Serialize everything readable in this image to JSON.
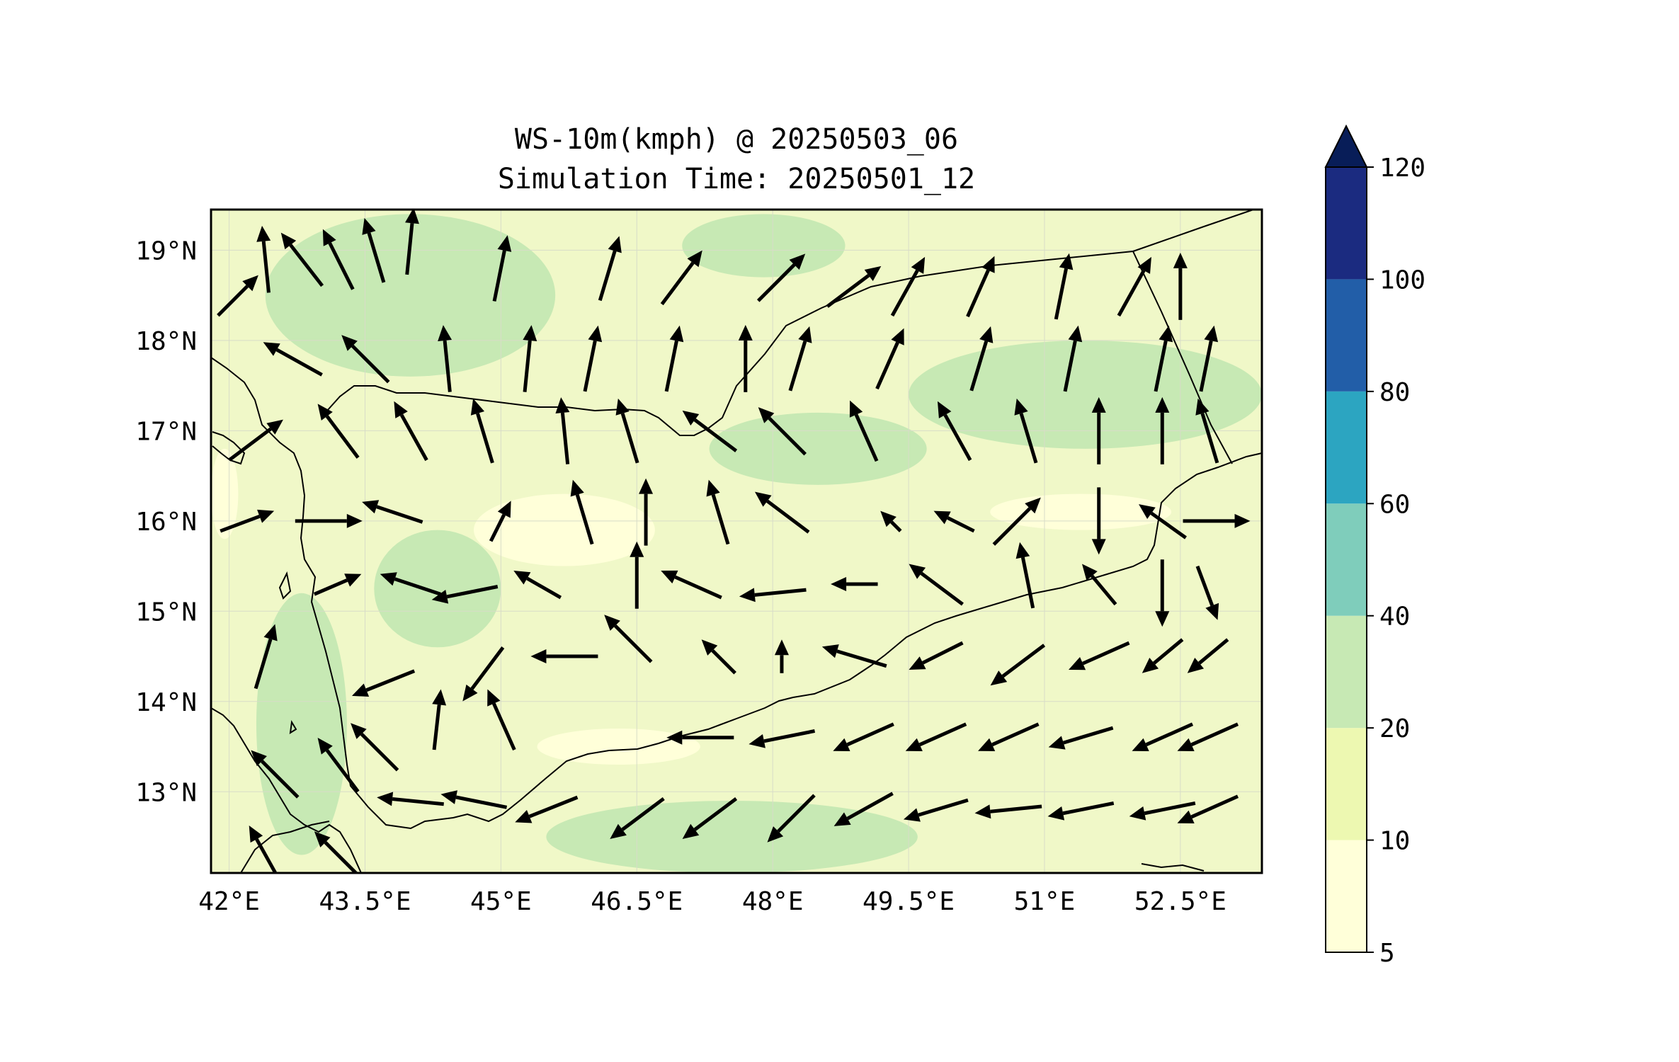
{
  "title": {
    "line1": "WS-10m(kmph) @ 20250503_06",
    "line2": "Simulation Time: 20250501_12"
  },
  "map": {
    "lon_range": [
      41.8,
      53.4
    ],
    "lat_range": [
      12.1,
      19.45
    ],
    "x_ticks": [
      {
        "value": 42.0,
        "label": "42°E"
      },
      {
        "value": 43.5,
        "label": "43.5°E"
      },
      {
        "value": 45.0,
        "label": "45°E"
      },
      {
        "value": 46.5,
        "label": "46.5°E"
      },
      {
        "value": 48.0,
        "label": "48°E"
      },
      {
        "value": 49.5,
        "label": "49.5°E"
      },
      {
        "value": 51.0,
        "label": "51°E"
      },
      {
        "value": 52.5,
        "label": "52.5°E"
      }
    ],
    "y_ticks": [
      {
        "value": 13,
        "label": "13°N"
      },
      {
        "value": 14,
        "label": "14°N"
      },
      {
        "value": 15,
        "label": "15°N"
      },
      {
        "value": 16,
        "label": "16°N"
      },
      {
        "value": 17,
        "label": "17°N"
      },
      {
        "value": 18,
        "label": "18°N"
      },
      {
        "value": 19,
        "label": "19°N"
      }
    ],
    "gridlines": true,
    "background_color": "#f0f8c8"
  },
  "colorbar": {
    "extend": "max",
    "orientation": "vertical",
    "levels": [
      5,
      10,
      20,
      40,
      60,
      80,
      100,
      120
    ],
    "colors": [
      "#ffffd9",
      "#edf8b1",
      "#c7e9b4",
      "#7fcdbb",
      "#2ca5c1",
      "#225ea8",
      "#1b2b80"
    ],
    "over_color": "#081d58",
    "tick_labels": [
      "5",
      "10",
      "20",
      "40",
      "60",
      "80",
      "100",
      "120"
    ]
  },
  "chart_data": {
    "type": "map",
    "variable": "WS-10m(kmph)",
    "valid_time": "20250503_06",
    "simulation_time": "20250501_12",
    "wind_speed_zones": [
      {
        "category": "20-40",
        "lon": [
          42.3,
          43.3
        ],
        "lat": [
          12.3,
          15.2
        ]
      },
      {
        "category": "20-40",
        "lon": [
          42.4,
          45.6
        ],
        "lat": [
          17.6,
          19.4
        ]
      },
      {
        "category": "20-40",
        "lon": [
          47.0,
          48.8
        ],
        "lat": [
          18.7,
          19.4
        ]
      },
      {
        "category": "20-40",
        "lon": [
          47.3,
          49.7
        ],
        "lat": [
          16.4,
          17.2
        ]
      },
      {
        "category": "20-40",
        "lon": [
          49.5,
          53.4
        ],
        "lat": [
          16.8,
          18.0
        ]
      },
      {
        "category": "20-40",
        "lon": [
          43.6,
          45.0
        ],
        "lat": [
          14.6,
          15.9
        ]
      },
      {
        "category": "20-40",
        "lon": [
          45.5,
          49.6
        ],
        "lat": [
          12.1,
          12.9
        ]
      },
      {
        "category": "5-10",
        "lon": [
          44.7,
          46.7
        ],
        "lat": [
          15.5,
          16.3
        ]
      },
      {
        "category": "5-10",
        "lon": [
          50.4,
          52.4
        ],
        "lat": [
          15.9,
          16.3
        ]
      },
      {
        "category": "5-10",
        "lon": [
          41.8,
          42.1
        ],
        "lat": [
          15.8,
          16.8
        ]
      },
      {
        "category": "5-10",
        "lon": [
          45.4,
          47.2
        ],
        "lat": [
          13.3,
          13.7
        ]
      }
    ],
    "wind_vectors": [
      {
        "lon": 42.1,
        "lat": 18.5,
        "u": 0.6,
        "v": 0.6
      },
      {
        "lon": 42.4,
        "lat": 18.9,
        "u": -0.1,
        "v": 1.0
      },
      {
        "lon": 42.8,
        "lat": 18.9,
        "u": -0.7,
        "v": 0.9
      },
      {
        "lon": 43.2,
        "lat": 18.9,
        "u": -0.5,
        "v": 1.0
      },
      {
        "lon": 43.6,
        "lat": 19.0,
        "u": -0.3,
        "v": 1.0
      },
      {
        "lon": 44.0,
        "lat": 19.1,
        "u": 0.1,
        "v": 1.0
      },
      {
        "lon": 45.0,
        "lat": 18.8,
        "u": 0.2,
        "v": 1.0
      },
      {
        "lon": 46.2,
        "lat": 18.8,
        "u": 0.3,
        "v": 1.0
      },
      {
        "lon": 47.0,
        "lat": 18.7,
        "u": 0.6,
        "v": 0.8
      },
      {
        "lon": 48.1,
        "lat": 18.7,
        "u": 0.7,
        "v": 0.7
      },
      {
        "lon": 48.9,
        "lat": 18.6,
        "u": 0.8,
        "v": 0.6
      },
      {
        "lon": 49.5,
        "lat": 18.6,
        "u": 0.5,
        "v": 0.9
      },
      {
        "lon": 50.3,
        "lat": 18.6,
        "u": 0.4,
        "v": 0.9
      },
      {
        "lon": 51.2,
        "lat": 18.6,
        "u": 0.2,
        "v": 1.0
      },
      {
        "lon": 52.0,
        "lat": 18.6,
        "u": 0.5,
        "v": 0.9
      },
      {
        "lon": 52.5,
        "lat": 18.6,
        "u": 0.0,
        "v": 1.0
      },
      {
        "lon": 42.7,
        "lat": 17.8,
        "u": -0.9,
        "v": 0.5
      },
      {
        "lon": 43.5,
        "lat": 17.8,
        "u": -0.7,
        "v": 0.7
      },
      {
        "lon": 44.4,
        "lat": 17.8,
        "u": -0.1,
        "v": 1.0
      },
      {
        "lon": 45.3,
        "lat": 17.8,
        "u": 0.1,
        "v": 1.0
      },
      {
        "lon": 46.0,
        "lat": 17.8,
        "u": 0.2,
        "v": 1.0
      },
      {
        "lon": 46.9,
        "lat": 17.8,
        "u": 0.2,
        "v": 1.0
      },
      {
        "lon": 47.7,
        "lat": 17.8,
        "u": 0.0,
        "v": 1.0
      },
      {
        "lon": 48.3,
        "lat": 17.8,
        "u": 0.3,
        "v": 1.0
      },
      {
        "lon": 49.3,
        "lat": 17.8,
        "u": 0.4,
        "v": 0.9
      },
      {
        "lon": 50.3,
        "lat": 17.8,
        "u": 0.3,
        "v": 1.0
      },
      {
        "lon": 51.3,
        "lat": 17.8,
        "u": 0.2,
        "v": 1.0
      },
      {
        "lon": 52.3,
        "lat": 17.8,
        "u": 0.2,
        "v": 1.0
      },
      {
        "lon": 52.8,
        "lat": 17.8,
        "u": 0.2,
        "v": 1.0
      },
      {
        "lon": 42.3,
        "lat": 16.9,
        "u": 0.8,
        "v": 0.6
      },
      {
        "lon": 43.2,
        "lat": 17.0,
        "u": -0.6,
        "v": 0.8
      },
      {
        "lon": 44.0,
        "lat": 17.0,
        "u": -0.5,
        "v": 0.9
      },
      {
        "lon": 44.8,
        "lat": 17.0,
        "u": -0.3,
        "v": 1.0
      },
      {
        "lon": 45.7,
        "lat": 17.0,
        "u": -0.1,
        "v": 1.0
      },
      {
        "lon": 46.4,
        "lat": 17.0,
        "u": -0.3,
        "v": 1.0
      },
      {
        "lon": 47.3,
        "lat": 17.0,
        "u": -0.8,
        "v": 0.6
      },
      {
        "lon": 48.1,
        "lat": 17.0,
        "u": -0.7,
        "v": 0.7
      },
      {
        "lon": 49.0,
        "lat": 17.0,
        "u": -0.4,
        "v": 0.9
      },
      {
        "lon": 50.0,
        "lat": 17.0,
        "u": -0.5,
        "v": 0.9
      },
      {
        "lon": 50.8,
        "lat": 17.0,
        "u": -0.3,
        "v": 1.0
      },
      {
        "lon": 51.6,
        "lat": 17.0,
        "u": 0.0,
        "v": 1.0
      },
      {
        "lon": 52.3,
        "lat": 17.0,
        "u": 0.0,
        "v": 1.0
      },
      {
        "lon": 52.8,
        "lat": 17.0,
        "u": -0.3,
        "v": 1.0
      },
      {
        "lon": 42.2,
        "lat": 16.0,
        "u": 0.8,
        "v": 0.3
      },
      {
        "lon": 43.1,
        "lat": 16.0,
        "u": 1.0,
        "v": 0.0
      },
      {
        "lon": 43.8,
        "lat": 16.1,
        "u": -0.9,
        "v": 0.3
      },
      {
        "lon": 45.0,
        "lat": 16.0,
        "u": 0.3,
        "v": 0.6
      },
      {
        "lon": 45.9,
        "lat": 16.1,
        "u": -0.3,
        "v": 1.0
      },
      {
        "lon": 46.6,
        "lat": 16.1,
        "u": 0.0,
        "v": 1.0
      },
      {
        "lon": 47.4,
        "lat": 16.1,
        "u": -0.3,
        "v": 1.0
      },
      {
        "lon": 48.1,
        "lat": 16.1,
        "u": -0.8,
        "v": 0.6
      },
      {
        "lon": 49.3,
        "lat": 16.0,
        "u": -0.3,
        "v": 0.3
      },
      {
        "lon": 50.0,
        "lat": 16.0,
        "u": -0.6,
        "v": 0.3
      },
      {
        "lon": 50.7,
        "lat": 16.0,
        "u": 0.7,
        "v": 0.7
      },
      {
        "lon": 51.6,
        "lat": 16.0,
        "u": 0.0,
        "v": -1.0
      },
      {
        "lon": 52.3,
        "lat": 16.0,
        "u": -0.7,
        "v": 0.5
      },
      {
        "lon": 52.9,
        "lat": 16.0,
        "u": 1.0,
        "v": 0.0
      },
      {
        "lon": 42.4,
        "lat": 14.5,
        "u": 0.3,
        "v": 1.0
      },
      {
        "lon": 43.2,
        "lat": 15.3,
        "u": 0.7,
        "v": 0.3
      },
      {
        "lon": 44.0,
        "lat": 15.3,
        "u": -0.9,
        "v": 0.3
      },
      {
        "lon": 44.6,
        "lat": 15.2,
        "u": -1.0,
        "v": -0.2
      },
      {
        "lon": 45.4,
        "lat": 15.3,
        "u": -0.7,
        "v": 0.4
      },
      {
        "lon": 46.5,
        "lat": 15.4,
        "u": 0.0,
        "v": 1.0
      },
      {
        "lon": 47.1,
        "lat": 15.3,
        "u": -0.9,
        "v": 0.4
      },
      {
        "lon": 48.0,
        "lat": 15.2,
        "u": -1.0,
        "v": -0.1
      },
      {
        "lon": 48.9,
        "lat": 15.3,
        "u": -0.7,
        "v": 0.0
      },
      {
        "lon": 49.8,
        "lat": 15.3,
        "u": -0.8,
        "v": 0.6
      },
      {
        "lon": 50.8,
        "lat": 15.4,
        "u": -0.2,
        "v": 1.0
      },
      {
        "lon": 51.6,
        "lat": 15.3,
        "u": -0.5,
        "v": 0.6
      },
      {
        "lon": 52.3,
        "lat": 15.2,
        "u": 0.0,
        "v": -1.0
      },
      {
        "lon": 52.8,
        "lat": 15.2,
        "u": 0.3,
        "v": -0.8
      },
      {
        "lon": 43.7,
        "lat": 14.2,
        "u": -1.0,
        "v": -0.4
      },
      {
        "lon": 44.8,
        "lat": 14.3,
        "u": -0.6,
        "v": -0.8
      },
      {
        "lon": 45.7,
        "lat": 14.5,
        "u": -1.0,
        "v": 0.0
      },
      {
        "lon": 46.4,
        "lat": 14.7,
        "u": -0.7,
        "v": 0.7
      },
      {
        "lon": 47.4,
        "lat": 14.5,
        "u": -0.5,
        "v": 0.5
      },
      {
        "lon": 48.1,
        "lat": 14.5,
        "u": 0.0,
        "v": 0.5
      },
      {
        "lon": 48.9,
        "lat": 14.5,
        "u": -1.0,
        "v": 0.3
      },
      {
        "lon": 49.8,
        "lat": 14.5,
        "u": -0.8,
        "v": -0.4
      },
      {
        "lon": 50.7,
        "lat": 14.4,
        "u": -0.8,
        "v": -0.6
      },
      {
        "lon": 51.6,
        "lat": 14.5,
        "u": -0.9,
        "v": -0.4
      },
      {
        "lon": 52.3,
        "lat": 14.5,
        "u": -0.6,
        "v": -0.5
      },
      {
        "lon": 52.8,
        "lat": 14.5,
        "u": -0.6,
        "v": -0.5
      },
      {
        "lon": 43.6,
        "lat": 13.5,
        "u": -0.7,
        "v": 0.7
      },
      {
        "lon": 44.3,
        "lat": 13.8,
        "u": 0.1,
        "v": 0.9
      },
      {
        "lon": 45.0,
        "lat": 13.8,
        "u": -0.4,
        "v": 0.9
      },
      {
        "lon": 47.2,
        "lat": 13.6,
        "u": -1.0,
        "v": 0.0
      },
      {
        "lon": 48.1,
        "lat": 13.6,
        "u": -1.0,
        "v": -0.2
      },
      {
        "lon": 49.0,
        "lat": 13.6,
        "u": -0.9,
        "v": -0.4
      },
      {
        "lon": 49.8,
        "lat": 13.6,
        "u": -0.9,
        "v": -0.4
      },
      {
        "lon": 50.6,
        "lat": 13.6,
        "u": -0.9,
        "v": -0.4
      },
      {
        "lon": 51.4,
        "lat": 13.6,
        "u": -1.0,
        "v": -0.3
      },
      {
        "lon": 52.3,
        "lat": 13.6,
        "u": -0.9,
        "v": -0.4
      },
      {
        "lon": 52.8,
        "lat": 13.6,
        "u": -0.9,
        "v": -0.4
      },
      {
        "lon": 42.5,
        "lat": 13.2,
        "u": -0.7,
        "v": 0.7
      },
      {
        "lon": 43.2,
        "lat": 13.3,
        "u": -0.6,
        "v": 0.8
      },
      {
        "lon": 44.0,
        "lat": 12.9,
        "u": -1.0,
        "v": 0.1
      },
      {
        "lon": 44.7,
        "lat": 12.9,
        "u": -1.0,
        "v": 0.2
      },
      {
        "lon": 45.5,
        "lat": 12.8,
        "u": -1.0,
        "v": -0.4
      },
      {
        "lon": 46.5,
        "lat": 12.7,
        "u": -0.8,
        "v": -0.6
      },
      {
        "lon": 47.3,
        "lat": 12.7,
        "u": -0.8,
        "v": -0.6
      },
      {
        "lon": 48.2,
        "lat": 12.7,
        "u": -0.7,
        "v": -0.7
      },
      {
        "lon": 49.0,
        "lat": 12.8,
        "u": -0.9,
        "v": -0.5
      },
      {
        "lon": 49.8,
        "lat": 12.8,
        "u": -1.0,
        "v": -0.3
      },
      {
        "lon": 50.6,
        "lat": 12.8,
        "u": -1.0,
        "v": -0.1
      },
      {
        "lon": 51.4,
        "lat": 12.8,
        "u": -1.0,
        "v": -0.2
      },
      {
        "lon": 52.3,
        "lat": 12.8,
        "u": -1.0,
        "v": -0.2
      },
      {
        "lon": 52.8,
        "lat": 12.8,
        "u": -0.9,
        "v": -0.4
      },
      {
        "lon": 42.4,
        "lat": 12.3,
        "u": -0.5,
        "v": 0.9
      },
      {
        "lon": 43.2,
        "lat": 12.3,
        "u": -0.7,
        "v": 0.7
      }
    ]
  }
}
